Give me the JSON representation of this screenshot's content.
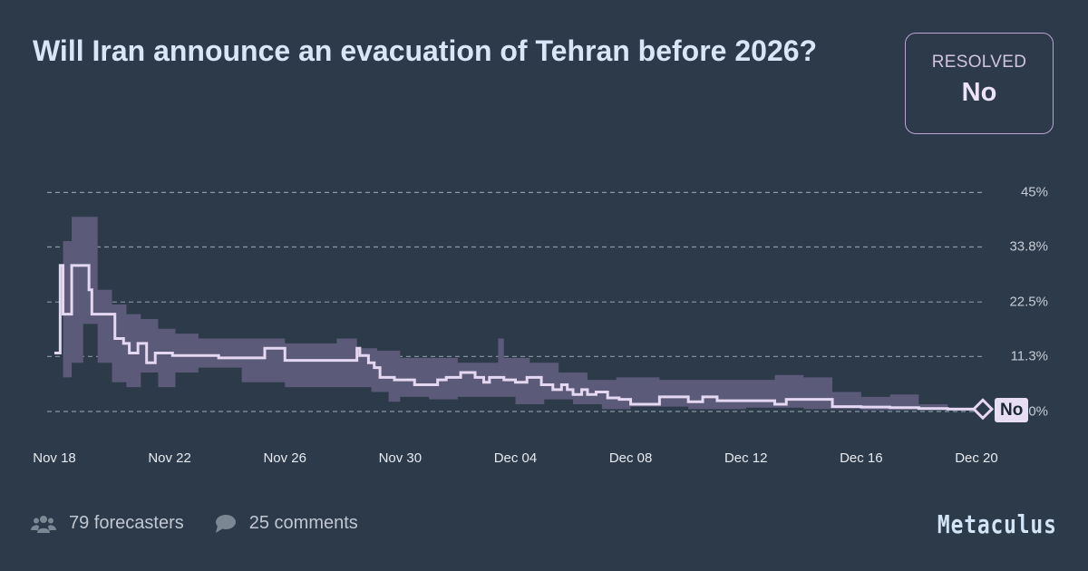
{
  "question": {
    "title": "Will Iran announce an evacuation of Tehran before 2026?"
  },
  "resolution": {
    "label": "RESOLVED",
    "value": "No"
  },
  "footer": {
    "forecasters": "79 forecasters",
    "comments": "25 comments",
    "brand": "Metaculus"
  },
  "colors": {
    "background": "#2d3a4a",
    "band": "#5b5a78",
    "line": "#e4d8f2",
    "grid": "#8a97a5",
    "resolved_border": "#b7a5cf"
  },
  "chart_data": {
    "type": "line",
    "title": "Will Iran announce an evacuation of Tehran before 2026?",
    "xlabel": "",
    "ylabel": "",
    "ylim": [
      0,
      45
    ],
    "yticks": [
      "45%",
      "33.8%",
      "22.5%",
      "11.3%",
      "0%"
    ],
    "ytick_values": [
      45,
      33.8,
      22.5,
      11.3,
      0
    ],
    "xticks": [
      "Nov 18",
      "Nov 22",
      "Nov 26",
      "Nov 30",
      "Dec 04",
      "Dec 08",
      "Dec 12",
      "Dec 16",
      "Dec 20"
    ],
    "xtick_days": [
      0,
      4,
      8,
      12,
      16,
      20,
      24,
      28,
      32
    ],
    "grid": true,
    "legend": "none",
    "resolution_marker": {
      "day": 32.2,
      "label": "No",
      "value": 0.5
    },
    "series": [
      {
        "name": "Community prediction (median)",
        "step": true,
        "x_days": [
          0,
          0.2,
          0.3,
          0.6,
          1.2,
          1.3,
          2.1,
          2.4,
          2.6,
          2.9,
          3.2,
          3.5,
          3.8,
          4.1,
          4.6,
          5.7,
          6.6,
          7.3,
          8.0,
          8.9,
          10.0,
          10.5,
          10.6,
          10.9,
          11.1,
          11.3,
          11.8,
          12.5,
          13.3,
          13.6,
          14.1,
          14.6,
          14.9,
          15.1,
          15.6,
          16.0,
          16.4,
          16.9,
          17.3,
          17.6,
          17.8,
          18.0,
          18.3,
          18.5,
          18.8,
          19.2,
          19.6,
          20.0,
          21.0,
          22.0,
          22.5,
          23.0,
          24.0,
          25.0,
          25.4,
          26.0,
          27.0,
          28.0,
          29.0,
          30.0,
          31.0,
          32.2
        ],
        "values": [
          12,
          30,
          20,
          30,
          25,
          20,
          15,
          14,
          12,
          14,
          10,
          12,
          12,
          11.5,
          11.5,
          11,
          11,
          13,
          10.5,
          10.5,
          10.5,
          13,
          11.5,
          10,
          9,
          7,
          6.5,
          5.5,
          6.5,
          7,
          8,
          7,
          6,
          7,
          6.5,
          6,
          7,
          5.5,
          4.5,
          5.5,
          4.5,
          3.5,
          4.5,
          3.5,
          4,
          2.8,
          2.5,
          1.5,
          3,
          2,
          3,
          2.2,
          2.2,
          1.5,
          2.5,
          2.5,
          1,
          0.9,
          0.8,
          0.6,
          0.5,
          0.5
        ]
      },
      {
        "name": "Interquartile band",
        "upper_days": [
          0,
          0.3,
          0.6,
          1.0,
          1.5,
          2.0,
          2.5,
          3.0,
          3.6,
          4.2,
          5.0,
          6.5,
          8.0,
          9.0,
          9.8,
          10.5,
          11.2,
          12.0,
          14.0,
          15.0,
          15.4,
          15.6,
          16.5,
          17.5,
          18.5,
          19.5,
          21.0,
          23.0,
          25.0,
          26.0,
          27.0,
          28.0,
          29.0,
          30.0,
          31.0,
          32.2
        ],
        "upper": [
          12,
          35,
          40,
          40,
          25,
          22,
          20,
          19,
          17,
          16,
          15,
          15,
          14,
          14,
          15,
          13,
          12.5,
          11,
          10,
          10,
          15,
          11,
          10,
          8,
          6.5,
          7,
          6.5,
          6.5,
          7.5,
          7,
          4,
          3,
          3.5,
          1.5,
          0.8,
          0.5
        ],
        "lower_days": [
          0,
          0.3,
          0.6,
          1.0,
          1.5,
          2.0,
          2.5,
          3.0,
          3.6,
          4.2,
          5.0,
          6.5,
          8.0,
          9.0,
          10.0,
          11.0,
          11.6,
          12.0,
          13.0,
          14.0,
          15.0,
          16.0,
          17.0,
          18.0,
          19.0,
          20.0,
          22.0,
          24.0,
          26.0,
          28.0,
          30.0,
          31.0,
          32.2
        ],
        "lower": [
          12,
          7,
          10,
          18,
          10,
          6,
          5,
          8,
          5,
          8,
          9,
          6,
          5,
          5,
          5,
          4,
          2,
          3,
          2.5,
          3,
          3,
          1.5,
          2.5,
          1.5,
          0.5,
          1,
          0.5,
          0.8,
          0.5,
          0.3,
          0.3,
          0.2,
          0.2
        ]
      }
    ]
  }
}
